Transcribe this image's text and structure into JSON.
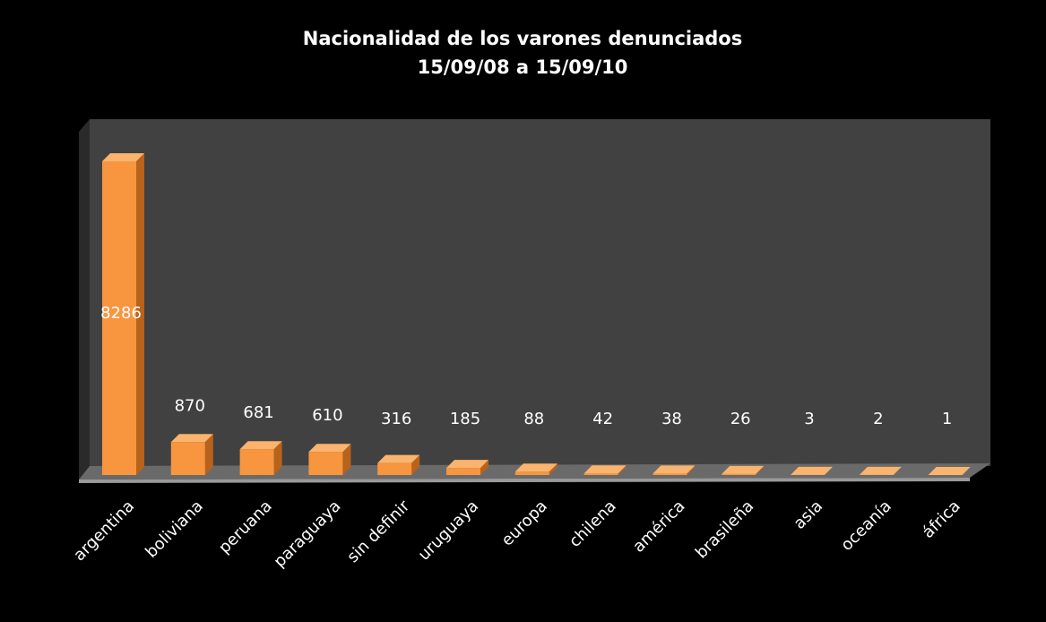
{
  "chart_data": {
    "type": "bar",
    "title": "Nacionalidad de los varones denunciados",
    "subtitle": "15/09/08 a 15/09/10",
    "categories": [
      "argentina",
      "boliviana",
      "peruana",
      "paraguaya",
      "sin definir",
      "uruguaya",
      "europa",
      "chilena",
      "américa",
      "brasileña",
      "asia",
      "oceanía",
      "áfrica"
    ],
    "values": [
      8286,
      870,
      681,
      610,
      316,
      185,
      88,
      42,
      38,
      26,
      3,
      2,
      1
    ],
    "color": "#f7963f"
  }
}
